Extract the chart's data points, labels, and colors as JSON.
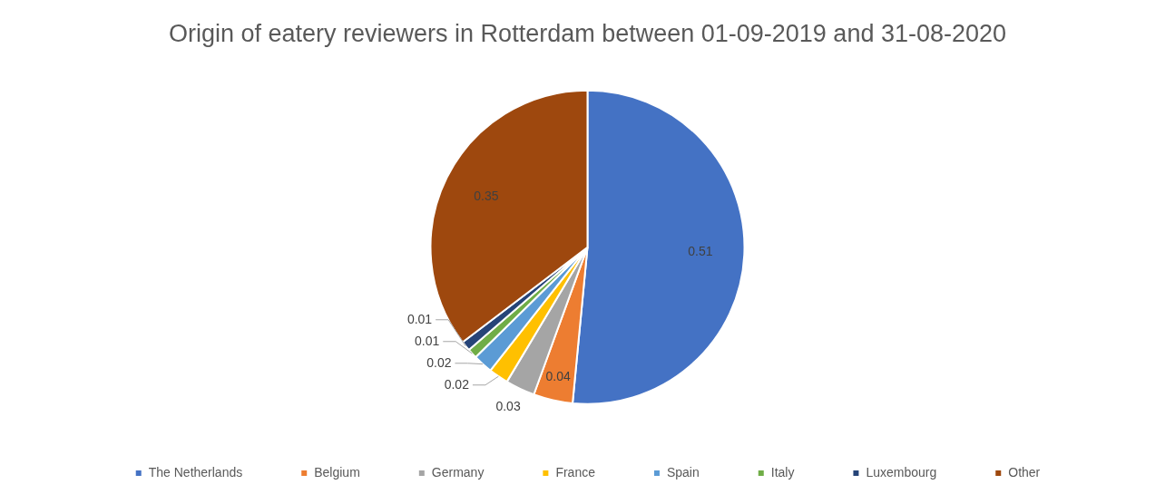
{
  "chart_data": {
    "type": "pie",
    "title": "Origin of eatery reviewers in Rotterdam between 01-09-2019 and 31-08-2020",
    "categories": [
      "The Netherlands",
      "Belgium",
      "Germany",
      "France",
      "Spain",
      "Italy",
      "Luxembourg",
      "Other"
    ],
    "values": [
      0.51,
      0.04,
      0.03,
      0.02,
      0.02,
      0.01,
      0.01,
      0.35
    ],
    "colors": [
      "#4472c4",
      "#ed7d31",
      "#a5a5a5",
      "#ffc000",
      "#5b9bd5",
      "#70ad47",
      "#264478",
      "#9e480e"
    ],
    "data_labels": true,
    "legend": "bottom"
  }
}
